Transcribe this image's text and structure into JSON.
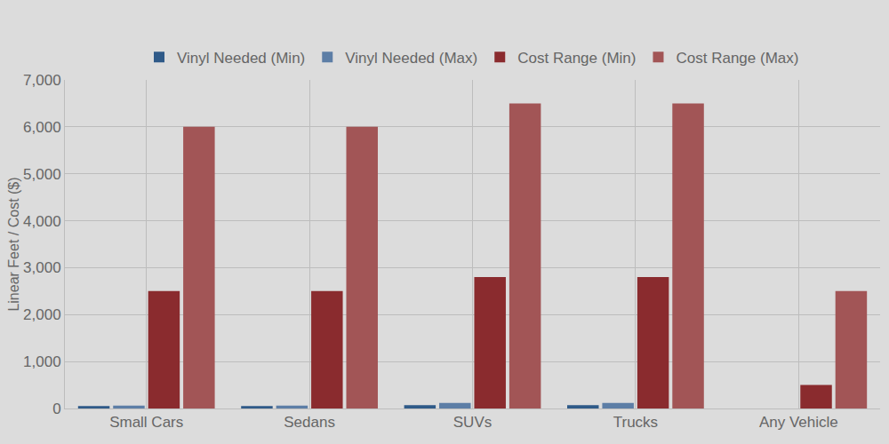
{
  "chart_data": {
    "type": "bar",
    "y_label": "Linear Feet / Cost ($)",
    "categories": [
      "Small Cars",
      "Sedans",
      "SUVs",
      "Trucks",
      "Any Vehicle"
    ],
    "series": [
      {
        "name": "Vinyl Needed (Min)",
        "color": "#2f5a88",
        "values": [
          50,
          50,
          70,
          70,
          null
        ]
      },
      {
        "name": "Vinyl Needed (Max)",
        "color": "#5d7ea6",
        "values": [
          60,
          60,
          120,
          120,
          null
        ]
      },
      {
        "name": "Cost Range (Min)",
        "color": "#8a2b2e",
        "values": [
          2500,
          2500,
          2800,
          2800,
          500
        ]
      },
      {
        "name": "Cost Range (Max)",
        "color": "#a25556",
        "values": [
          6000,
          6000,
          6500,
          6500,
          2500
        ]
      }
    ],
    "ylim": [
      0,
      7000
    ],
    "yticks": [
      0,
      {
        "value": 1000,
        "label": "1,000"
      },
      {
        "value": 2000,
        "label": "2,000"
      },
      {
        "value": 3000,
        "label": "3,000"
      },
      {
        "value": 4000,
        "label": "4,000"
      },
      {
        "value": 5000,
        "label": "5,000"
      },
      {
        "value": 6000,
        "label": "6,000"
      },
      {
        "value": 7000,
        "label": "7,000"
      }
    ],
    "grid": true,
    "legend": "top"
  }
}
